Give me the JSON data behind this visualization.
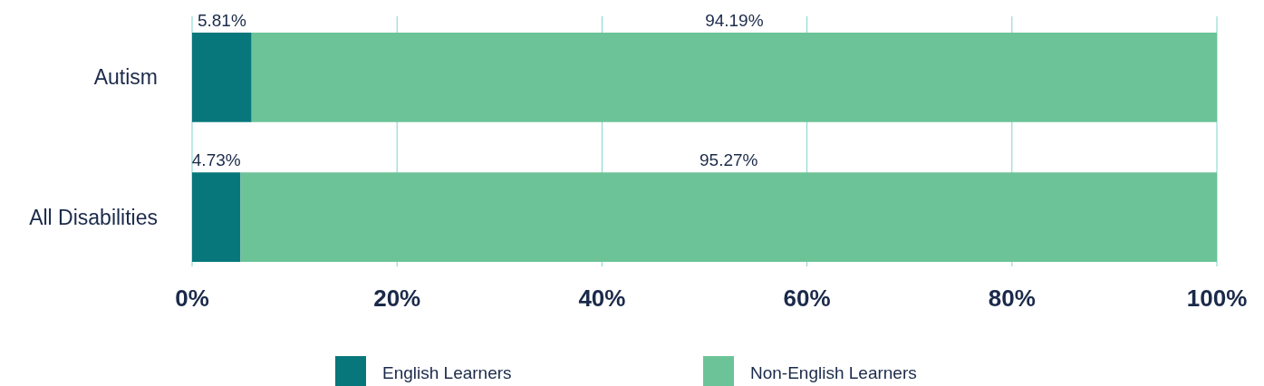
{
  "chart_data": {
    "type": "bar",
    "orientation": "horizontal",
    "stacked": true,
    "categories": [
      "Autism",
      "All Disabilities"
    ],
    "series": [
      {
        "name": "English Learners",
        "color": "#08777c",
        "values": [
          5.81,
          4.73
        ],
        "value_labels": [
          "5.81%",
          "4.73%"
        ]
      },
      {
        "name": "Non-English Learners",
        "color": "#6cc398",
        "values": [
          94.19,
          95.27
        ],
        "value_labels": [
          "94.19%",
          "95.27%"
        ]
      }
    ],
    "xlim": [
      0,
      100
    ],
    "xticks": [
      {
        "value": 0,
        "label": "0%"
      },
      {
        "value": 20,
        "label": "20%"
      },
      {
        "value": 40,
        "label": "40%"
      },
      {
        "value": 60,
        "label": "60%"
      },
      {
        "value": 80,
        "label": "80%"
      },
      {
        "value": 100,
        "label": "100%"
      }
    ],
    "grid": "x",
    "legend": "bottom"
  }
}
